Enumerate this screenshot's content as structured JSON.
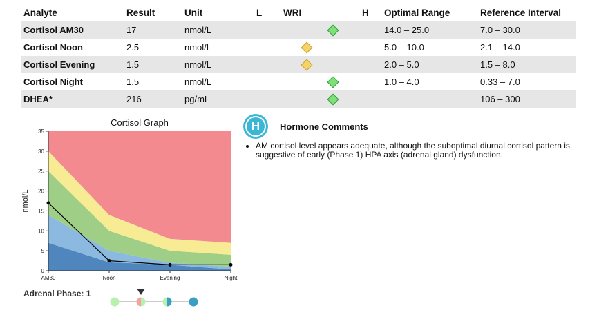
{
  "table": {
    "headers": {
      "analyte": "Analyte",
      "result": "Result",
      "unit": "Unit",
      "low": "L",
      "wri": "WRI",
      "high": "H",
      "optimal": "Optimal Range",
      "reference": "Reference Interval"
    },
    "rows": [
      {
        "analyte": "Cortisol AM30",
        "result": "17",
        "unit": "nmol/L",
        "wri_status": "green",
        "optimal": "14.0 – 25.0",
        "reference": "7.0 – 30.0"
      },
      {
        "analyte": "Cortisol Noon",
        "result": "2.5",
        "unit": "nmol/L",
        "wri_status": "yellow",
        "optimal": "5.0 – 10.0",
        "reference": "2.1 – 14.0"
      },
      {
        "analyte": "Cortisol Evening",
        "result": "1.5",
        "unit": "nmol/L",
        "wri_status": "yellow",
        "optimal": "2.0 – 5.0",
        "reference": "1.5 – 8.0"
      },
      {
        "analyte": "Cortisol Night",
        "result": "1.5",
        "unit": "nmol/L",
        "wri_status": "green",
        "optimal": "1.0 – 4.0",
        "reference": "0.33 – 7.0"
      },
      {
        "analyte": "DHEA*",
        "result": "216",
        "unit": "pg/mL",
        "wri_status": "green",
        "optimal": "",
        "reference": "106 – 300"
      }
    ]
  },
  "chart_data": {
    "type": "area",
    "title": "Cortisol Graph",
    "ylabel": "nmol/L",
    "xlabel": "",
    "categories": [
      "AM30",
      "Noon",
      "Evening",
      "Night"
    ],
    "ylim": [
      0,
      35
    ],
    "yticks": [
      0,
      5,
      10,
      15,
      20,
      25,
      30,
      35
    ],
    "grid": false,
    "bands": [
      {
        "upper": [
          7,
          2.1,
          1.5,
          0.33
        ],
        "color": "#4f86bd"
      },
      {
        "upper": [
          14,
          5,
          2,
          1
        ],
        "color": "#8cb9df"
      },
      {
        "upper": [
          25,
          10,
          5,
          4
        ],
        "color": "#9fcf86"
      },
      {
        "upper": [
          30,
          14,
          8,
          7
        ],
        "color": "#f7eb93"
      },
      {
        "upper": [
          35,
          35,
          35,
          35
        ],
        "color": "#f28a90"
      }
    ],
    "series": [
      {
        "values": [
          17,
          2.5,
          1.5,
          1.5
        ],
        "color": "#000000"
      }
    ]
  },
  "phase": {
    "label": "Adrenal Phase: 1",
    "current": 2,
    "markers": [
      {
        "left": "#b9f0b0",
        "right": "#b9f0b0"
      },
      {
        "left": "#f4a3a3",
        "right": "#b9f0b0"
      },
      {
        "left": "#b9f0b0",
        "right": "#3a9fc2"
      },
      {
        "left": "#3a9fc2",
        "right": "#3a9fc2"
      }
    ]
  },
  "comments": {
    "icon_letter": "H",
    "title": "Hormone Comments",
    "items": [
      "AM cortisol level appears adequate, although the suboptimal diurnal cortisol pattern is suggestive of early (Phase 1) HPA axis (adrenal gland) dysfunction."
    ]
  }
}
